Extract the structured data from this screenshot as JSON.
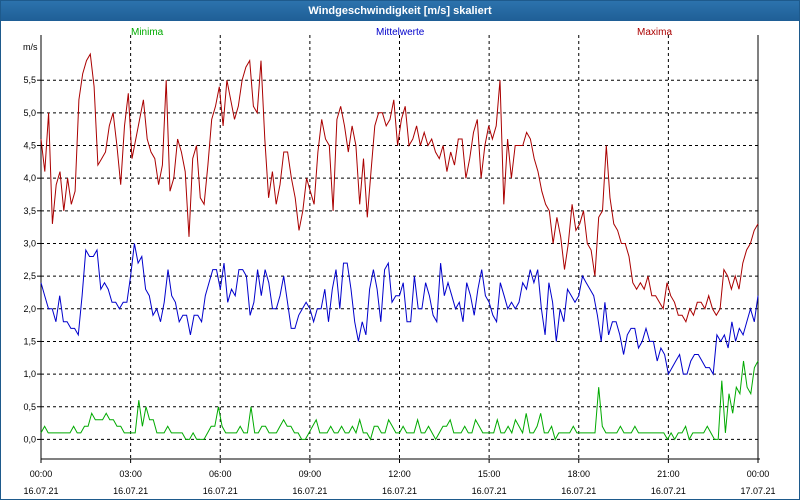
{
  "window": {
    "title": "Windgeschwindigkeit [m/s] skaliert"
  },
  "colors": {
    "title_bg": "#1f5f96",
    "minima": "#00aa00",
    "mittel": "#0000cc",
    "maxima": "#aa0000",
    "grid": "#000000"
  },
  "chart_data": {
    "type": "line",
    "title": "Windgeschwindigkeit [m/s] skaliert",
    "ylabel": "m/s",
    "ylim": [
      -0.3,
      6.1
    ],
    "yticks": [
      "0,0",
      "0,5",
      "1,0",
      "1,5",
      "2,0",
      "2,5",
      "3,0",
      "3,5",
      "4,0",
      "4,5",
      "5,0",
      "5,5"
    ],
    "ytick_values": [
      0,
      0.5,
      1,
      1.5,
      2,
      2.5,
      3,
      3.5,
      4,
      4.5,
      5,
      5.5
    ],
    "x_range_hours": [
      0,
      24
    ],
    "xticks": [
      {
        "time": "00:00",
        "date": "16.07.21"
      },
      {
        "time": "03:00",
        "date": "16.07.21"
      },
      {
        "time": "06:00",
        "date": "16.07.21"
      },
      {
        "time": "09:00",
        "date": "16.07.21"
      },
      {
        "time": "12:00",
        "date": "16.07.21"
      },
      {
        "time": "15:00",
        "date": "16.07.21"
      },
      {
        "time": "18:00",
        "date": "16.07.21"
      },
      {
        "time": "21:00",
        "date": "16.07.21"
      },
      {
        "time": "00:00",
        "date": "17.07.21"
      }
    ],
    "grid": true,
    "legend_position": "top",
    "series": [
      {
        "name": "Minima",
        "color": "#00aa00",
        "values": [
          0.1,
          0.2,
          0.1,
          0.1,
          0.1,
          0.1,
          0.1,
          0.1,
          0.1,
          0.2,
          0.1,
          0.1,
          0.2,
          0.2,
          0.4,
          0.3,
          0.3,
          0.3,
          0.4,
          0.3,
          0.3,
          0.2,
          0.2,
          0.1,
          0.1,
          0.1,
          0.1,
          0.6,
          0.2,
          0.5,
          0.3,
          0.3,
          0.1,
          0.1,
          0.1,
          0.2,
          0.1,
          0.1,
          0.1,
          0.1,
          0.0,
          0.0,
          0.1,
          0.0,
          0.0,
          0.0,
          0.1,
          0.2,
          0.2,
          0.5,
          0.2,
          0.1,
          0.1,
          0.1,
          0.1,
          0.2,
          0.1,
          0.1,
          0.5,
          0.1,
          0.1,
          0.2,
          0.2,
          0.1,
          0.1,
          0.1,
          0.2,
          0.3,
          0.2,
          0.2,
          0.1,
          0.1,
          0.0,
          0.0,
          0.1,
          0.2,
          0.3,
          0.1,
          0.1,
          0.1,
          0.2,
          0.1,
          0.1,
          0.2,
          0.1,
          0.1,
          0.2,
          0.1,
          0.3,
          0.1,
          0.1,
          0.0,
          0.2,
          0.2,
          0.1,
          0.1,
          0.3,
          0.2,
          0.1,
          0.1,
          0.2,
          0.1,
          0.1,
          0.1,
          0.3,
          0.1,
          0.1,
          0.2,
          0.1,
          0.0,
          0.1,
          0.2,
          0.2,
          0.3,
          0.1,
          0.1,
          0.1,
          0.2,
          0.1,
          0.1,
          0.3,
          0.2,
          0.1,
          0.1,
          0.1,
          0.1,
          0.3,
          0.1,
          0.1,
          0.2,
          0.1,
          0.3,
          0.2,
          0.1,
          0.4,
          0.1,
          0.1,
          0.2,
          0.4,
          0.1,
          0.1,
          0.2,
          0.0,
          0.1,
          0.1,
          0.1,
          0.1,
          0.2,
          0.1,
          0.1,
          0.1,
          0.1,
          0.1,
          0.1,
          0.8,
          0.2,
          0.1,
          0.1,
          0.1,
          0.1,
          0.2,
          0.1,
          0.1,
          0.1,
          0.2,
          0.1,
          0.1,
          0.1,
          0.1,
          0.1,
          0.1,
          0.1,
          0.1,
          0.0,
          0.1,
          0.0,
          0.1,
          0.1,
          0.2,
          0.0,
          0.1,
          0.1,
          0.1,
          0.1,
          0.2,
          0.1,
          0.0,
          0.0,
          0.9,
          0.1,
          0.7,
          0.4,
          0.8,
          0.7,
          1.2,
          0.8,
          0.7,
          1.1,
          1.2
        ]
      },
      {
        "name": "Mittelwerte",
        "color": "#0000cc",
        "values": [
          2.4,
          2.2,
          2.0,
          2.0,
          1.8,
          2.2,
          1.8,
          1.8,
          1.7,
          1.7,
          1.6,
          2.2,
          2.9,
          2.8,
          2.8,
          2.9,
          2.3,
          2.4,
          2.3,
          2.1,
          2.1,
          2.0,
          2.1,
          2.1,
          2.5,
          3.0,
          2.7,
          2.8,
          2.3,
          2.2,
          1.9,
          2.0,
          1.8,
          2.1,
          2.6,
          2.2,
          2.1,
          1.8,
          1.9,
          1.9,
          1.6,
          1.9,
          1.9,
          1.8,
          2.2,
          2.4,
          2.6,
          2.6,
          2.3,
          2.7,
          2.1,
          2.3,
          2.2,
          2.6,
          2.6,
          2.5,
          1.9,
          2.1,
          2.6,
          2.2,
          2.6,
          2.4,
          2.0,
          2.0,
          2.2,
          2.5,
          2.1,
          1.7,
          1.7,
          1.9,
          2.0,
          2.1,
          2.0,
          1.8,
          2.0,
          2.0,
          2.3,
          1.8,
          2.3,
          2.6,
          2.0,
          2.7,
          2.7,
          2.3,
          1.8,
          1.5,
          1.8,
          1.6,
          2.3,
          2.6,
          2.3,
          1.8,
          2.6,
          2.7,
          2.1,
          2.2,
          2.2,
          2.4,
          1.8,
          1.8,
          2.5,
          2.0,
          2.0,
          2.4,
          2.2,
          1.9,
          1.8,
          2.7,
          2.2,
          2.4,
          2.2,
          2.0,
          2.1,
          1.8,
          2.4,
          2.2,
          1.9,
          2.3,
          2.6,
          2.2,
          2.1,
          1.9,
          1.8,
          2.4,
          2.2,
          2.0,
          2.1,
          2.0,
          2.1,
          2.4,
          2.3,
          2.6,
          2.4,
          2.6,
          2.0,
          1.6,
          2.4,
          2.1,
          1.5,
          2.0,
          1.8,
          2.3,
          2.2,
          2.1,
          2.2,
          2.5,
          2.4,
          2.3,
          2.2,
          1.9,
          1.5,
          2.1,
          1.6,
          1.8,
          1.8,
          1.6,
          1.3,
          1.6,
          1.7,
          1.7,
          1.4,
          1.5,
          1.7,
          1.5,
          1.5,
          1.2,
          1.4,
          1.3,
          1.0,
          1.1,
          1.2,
          1.3,
          1.0,
          1.0,
          1.2,
          1.3,
          1.3,
          1.2,
          1.1,
          1.1,
          1.0,
          1.6,
          1.5,
          1.6,
          1.4,
          1.8,
          1.5,
          1.7,
          1.6,
          1.8,
          2.0,
          1.8,
          2.2
        ]
      },
      {
        "name": "Maxima",
        "color": "#aa0000",
        "values": [
          4.6,
          4.1,
          5.0,
          3.3,
          3.9,
          4.1,
          3.5,
          4.0,
          3.6,
          3.8,
          5.2,
          5.6,
          5.8,
          5.9,
          5.4,
          4.2,
          4.3,
          4.4,
          4.8,
          5.0,
          4.5,
          3.9,
          4.8,
          5.3,
          4.3,
          4.6,
          4.9,
          5.2,
          4.6,
          4.4,
          4.3,
          3.9,
          4.2,
          5.5,
          3.8,
          4.0,
          4.6,
          4.4,
          4.1,
          3.1,
          4.3,
          4.5,
          3.7,
          3.6,
          4.2,
          4.9,
          5.1,
          5.4,
          4.8,
          5.5,
          5.2,
          4.9,
          5.1,
          5.5,
          5.7,
          5.8,
          5.1,
          5.0,
          5.8,
          4.6,
          3.7,
          4.1,
          3.6,
          3.9,
          4.4,
          4.4,
          4.0,
          3.7,
          3.2,
          3.5,
          4.0,
          3.8,
          3.6,
          4.4,
          4.9,
          4.6,
          4.5,
          3.5,
          4.9,
          5.1,
          4.8,
          4.4,
          4.8,
          4.5,
          3.6,
          4.3,
          3.4,
          4.1,
          4.8,
          5.0,
          5.0,
          4.8,
          4.9,
          5.2,
          4.5,
          4.9,
          5.1,
          4.5,
          4.6,
          4.8,
          4.5,
          4.7,
          4.5,
          4.6,
          4.4,
          4.3,
          4.5,
          4.1,
          4.4,
          4.2,
          4.6,
          4.6,
          4.0,
          4.3,
          4.7,
          4.9,
          4.0,
          4.5,
          4.8,
          4.6,
          4.8,
          5.5,
          3.6,
          4.6,
          4.0,
          4.5,
          4.5,
          4.5,
          4.7,
          4.6,
          4.3,
          4.1,
          3.8,
          3.6,
          3.5,
          3.0,
          3.4,
          3.1,
          2.6,
          3.0,
          3.6,
          3.2,
          3.3,
          3.5,
          3.0,
          2.9,
          2.5,
          3.4,
          3.5,
          4.5,
          3.7,
          3.3,
          3.2,
          3.0,
          3.0,
          2.8,
          2.4,
          2.3,
          2.4,
          2.3,
          2.5,
          2.2,
          2.2,
          2.1,
          2.0,
          2.4,
          2.2,
          2.1,
          1.9,
          1.9,
          1.8,
          2.0,
          1.9,
          2.1,
          2.1,
          2.0,
          2.2,
          2.0,
          1.9,
          2.0,
          2.6,
          2.5,
          2.3,
          2.5,
          2.3,
          2.7,
          2.9,
          3.0,
          3.2,
          3.3
        ]
      }
    ]
  }
}
